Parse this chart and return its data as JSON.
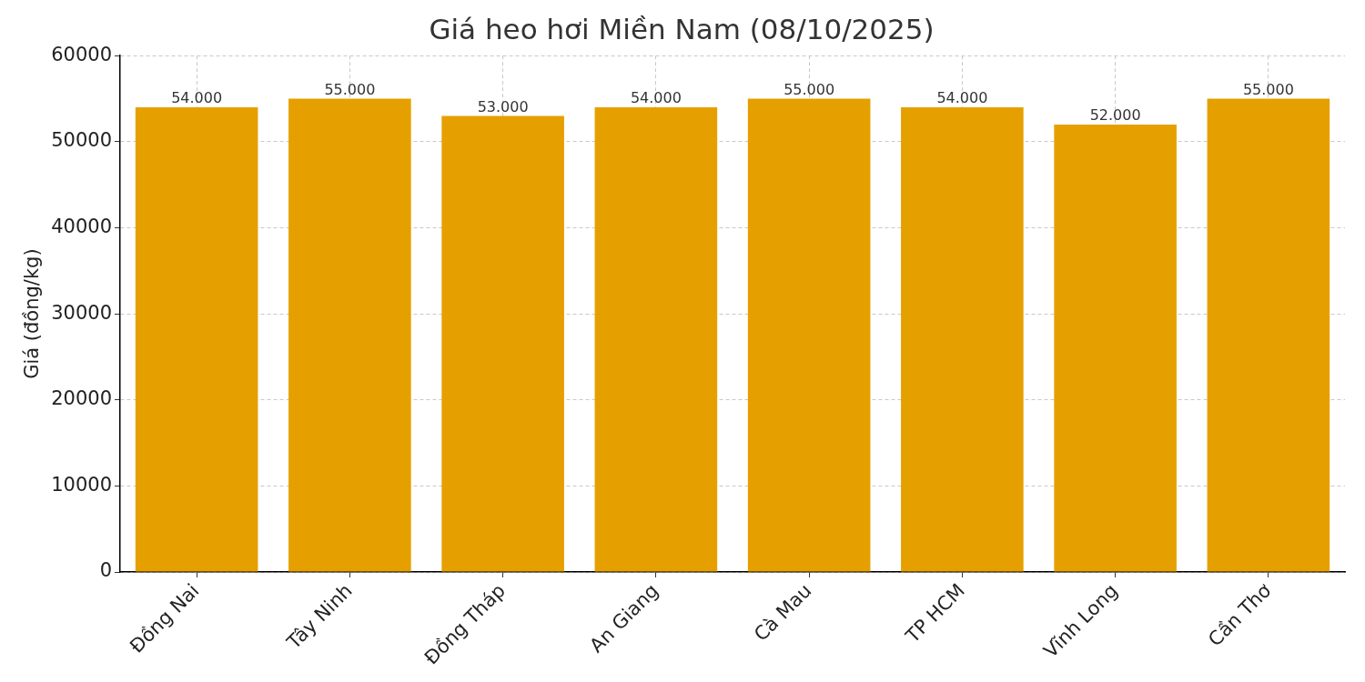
{
  "chart_data": {
    "type": "bar",
    "title": "Giá heo hơi Miền Nam (08/10/2025)",
    "ylabel": "Giá (đồng/kg)",
    "categories": [
      "Đồng Nai",
      "Tây Ninh",
      "Đồng Tháp",
      "An Giang",
      "Cà Mau",
      "TP HCM",
      "Vĩnh Long",
      "Cần Thơ"
    ],
    "values": [
      54000,
      55000,
      53000,
      54000,
      55000,
      54000,
      52000,
      55000
    ],
    "value_labels": [
      "54.000",
      "55.000",
      "53.000",
      "54.000",
      "55.000",
      "54.000",
      "52.000",
      "55.000"
    ],
    "color": "#e5a000",
    "ylim": [
      0,
      60000
    ],
    "yticks": [
      0,
      10000,
      20000,
      30000,
      40000,
      50000,
      60000
    ],
    "grid": true,
    "legend": false
  }
}
